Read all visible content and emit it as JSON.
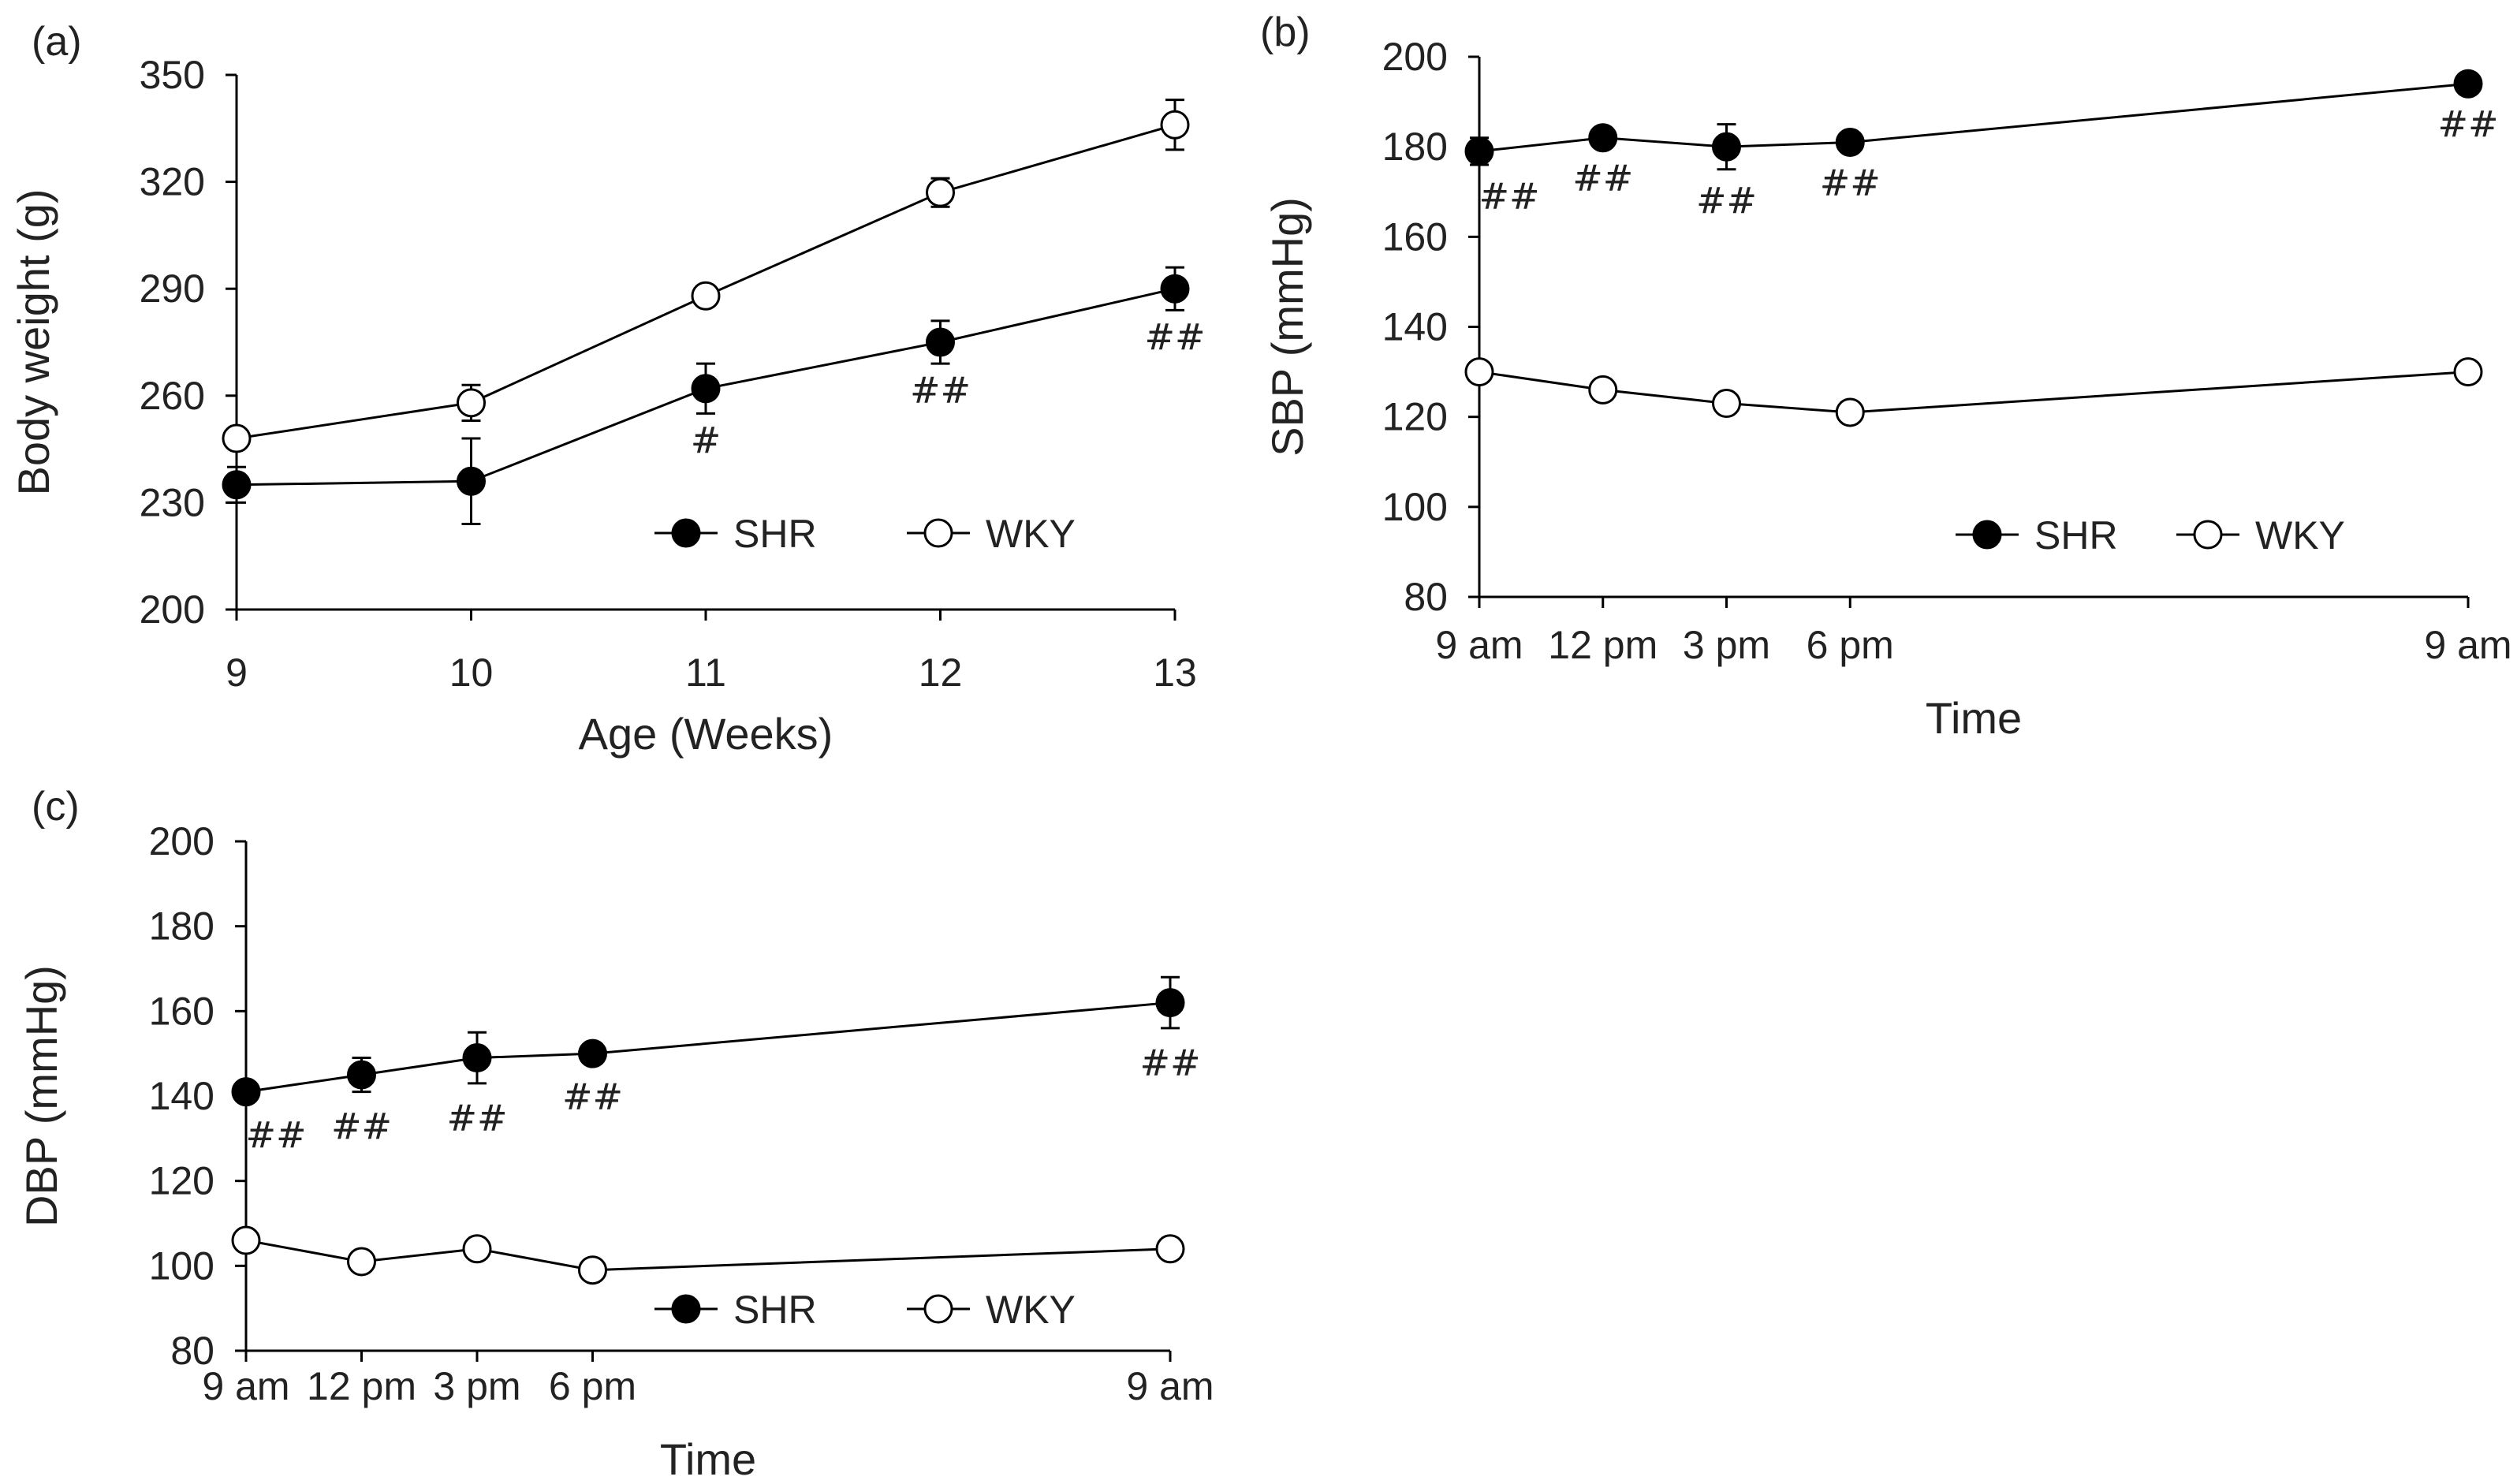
{
  "chart_data": [
    {
      "panel": "(a)",
      "type": "line",
      "xlabel": "Age (Weeks)",
      "ylabel": "Body weight (g)",
      "categories": [
        "9",
        "10",
        "11",
        "12",
        "13"
      ],
      "ylim": [
        200,
        350
      ],
      "yticks": [
        200,
        230,
        260,
        290,
        320,
        350
      ],
      "series": [
        {
          "name": "SHR",
          "marker": "filled",
          "values": [
            235,
            236,
            262,
            275,
            290
          ],
          "errors": [
            5,
            12,
            7,
            6,
            6
          ],
          "significance": [
            "",
            "",
            "#",
            "##",
            "##"
          ]
        },
        {
          "name": "WKY",
          "marker": "open",
          "values": [
            248,
            258,
            288,
            317,
            336
          ],
          "errors": [
            2,
            5,
            2,
            4,
            7
          ],
          "significance": [
            "",
            "",
            "",
            "",
            ""
          ]
        }
      ],
      "legend": [
        "SHR",
        "WKY"
      ]
    },
    {
      "panel": "(b)",
      "type": "line",
      "xlabel": "Time",
      "ylabel": "SBP (mmHg)",
      "categories": [
        "9 am",
        "12 pm",
        "3 pm",
        "6 pm",
        "9 am"
      ],
      "x": [
        0,
        3,
        6,
        9,
        24
      ],
      "ylim": [
        80,
        200
      ],
      "yticks": [
        80,
        100,
        120,
        140,
        160,
        180,
        200
      ],
      "series": [
        {
          "name": "SHR",
          "marker": "filled",
          "values": [
            179,
            182,
            180,
            181,
            194
          ],
          "errors": [
            3,
            2,
            5,
            2,
            2
          ],
          "significance": [
            "##",
            "##",
            "##",
            "##",
            "##"
          ]
        },
        {
          "name": "WKY",
          "marker": "open",
          "values": [
            130,
            126,
            123,
            121,
            130
          ],
          "errors": [
            1,
            1,
            1,
            1,
            1
          ],
          "significance": [
            "",
            "",
            "",
            "",
            ""
          ]
        }
      ],
      "legend": [
        "SHR",
        "WKY"
      ]
    },
    {
      "panel": "(c)",
      "type": "line",
      "xlabel": "Time",
      "ylabel": "DBP (mmHg)",
      "categories": [
        "9 am",
        "12 pm",
        "3 pm",
        "6 pm",
        "9 am"
      ],
      "x": [
        0,
        3,
        6,
        9,
        24
      ],
      "ylim": [
        80,
        200
      ],
      "yticks": [
        80,
        100,
        120,
        140,
        160,
        180,
        200
      ],
      "series": [
        {
          "name": "SHR",
          "marker": "filled",
          "values": [
            141,
            145,
            149,
            150,
            162
          ],
          "errors": [
            2,
            4,
            6,
            2,
            6
          ],
          "significance": [
            "##",
            "##",
            "##",
            "##",
            "##"
          ]
        },
        {
          "name": "WKY",
          "marker": "open",
          "values": [
            106,
            101,
            104,
            99,
            104
          ],
          "errors": [
            1,
            1,
            1,
            1,
            1
          ],
          "significance": [
            "",
            "",
            "",
            "",
            ""
          ]
        }
      ],
      "legend": [
        "SHR",
        "WKY"
      ]
    }
  ]
}
